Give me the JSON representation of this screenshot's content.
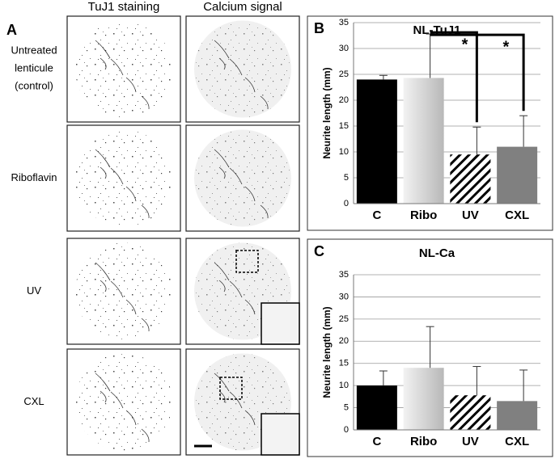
{
  "panel_a": {
    "label": "A",
    "columns": [
      "TuJ1 staining",
      "Calcium signal"
    ],
    "rows": [
      "Untreated lenticule (control)",
      "Riboflavin",
      "UV",
      "CXL"
    ]
  },
  "chart_data": [
    {
      "type": "bar",
      "panel_label": "B",
      "title": "NL-TuJ1",
      "y_label": "Neurite length (mm)",
      "categories": [
        "C",
        "Ribo",
        "UV",
        "CXL"
      ],
      "values": [
        24,
        24.3,
        9.5,
        11
      ],
      "errors": [
        0.8,
        8.5,
        5.3,
        6
      ],
      "colors": [
        "#000000",
        "#cfcfcf",
        "#ffffff",
        "#808080"
      ],
      "hatched": [
        false,
        false,
        true,
        false
      ],
      "ylim": [
        0,
        35
      ],
      "yticks": [
        0,
        5,
        10,
        15,
        20,
        25,
        30,
        35
      ],
      "grid": true,
      "annotations": [
        "*",
        "*"
      ]
    },
    {
      "type": "bar",
      "panel_label": "C",
      "title": "NL-Ca",
      "y_label": "Neurite length (mm)",
      "categories": [
        "C",
        "Ribo",
        "UV",
        "CXL"
      ],
      "values": [
        10,
        14,
        7.8,
        6.5
      ],
      "errors": [
        3.3,
        9.3,
        6.5,
        7
      ],
      "colors": [
        "#000000",
        "#cfcfcf",
        "#ffffff",
        "#808080"
      ],
      "hatched": [
        false,
        false,
        true,
        false
      ],
      "ylim": [
        0,
        35
      ],
      "yticks": [
        0,
        5,
        10,
        15,
        20,
        25,
        30,
        35
      ],
      "grid": true,
      "annotations": []
    }
  ]
}
